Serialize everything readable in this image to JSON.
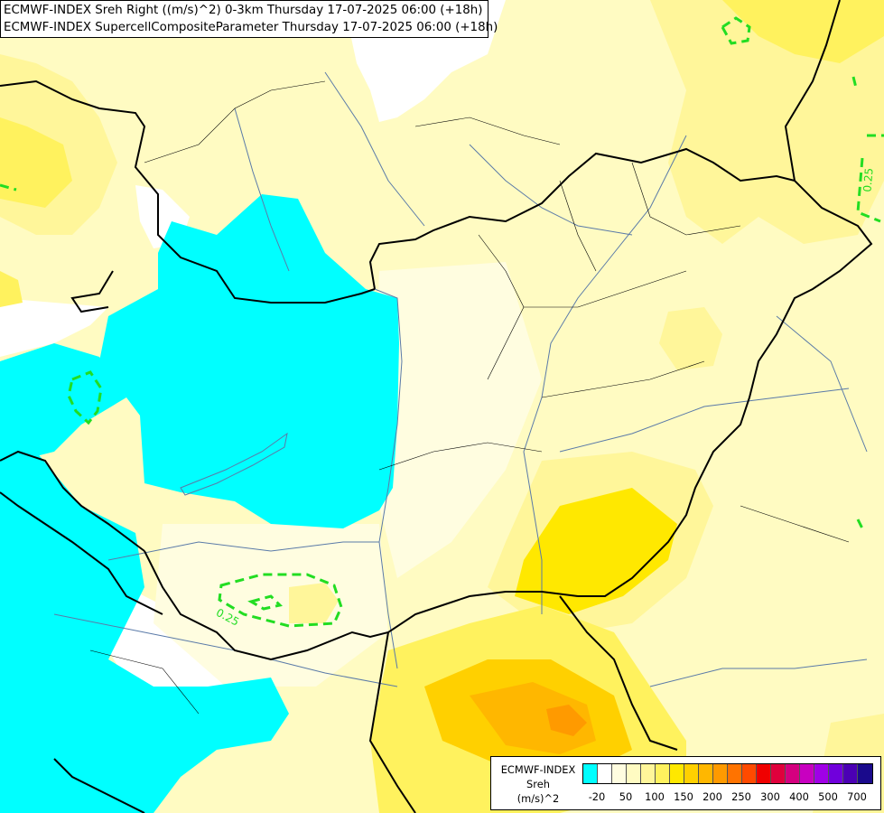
{
  "header": {
    "line1": "ECMWF-INDEX Sreh Right ((m/s)^2) 0-3km Thursday 17-07-2025 06:00 (+18h)",
    "line2": "ECMWF-INDEX SupercellCompositeParameter Thursday 17-07-2025 06:00 (+18h)"
  },
  "contours": {
    "label_left": "0.25",
    "label_right": "0.25"
  },
  "legend": {
    "title1": "ECMWF-INDEX",
    "title2": "Sreh",
    "title3": "(m/s)^2",
    "colors": [
      "#00ffff",
      "#ffffff",
      "#fffde0",
      "#fffbc2",
      "#fff69a",
      "#fff25e",
      "#ffe800",
      "#ffd000",
      "#ffb700",
      "#ff9a00",
      "#ff7300",
      "#ff4a00",
      "#f00000",
      "#e0003c",
      "#d4007f",
      "#c800c0",
      "#a000e6",
      "#7000dc",
      "#4b00b4",
      "#1a0a8c"
    ],
    "ticks": [
      "-20",
      "50",
      "100",
      "150",
      "200",
      "250",
      "300",
      "400",
      "500",
      "700"
    ]
  }
}
